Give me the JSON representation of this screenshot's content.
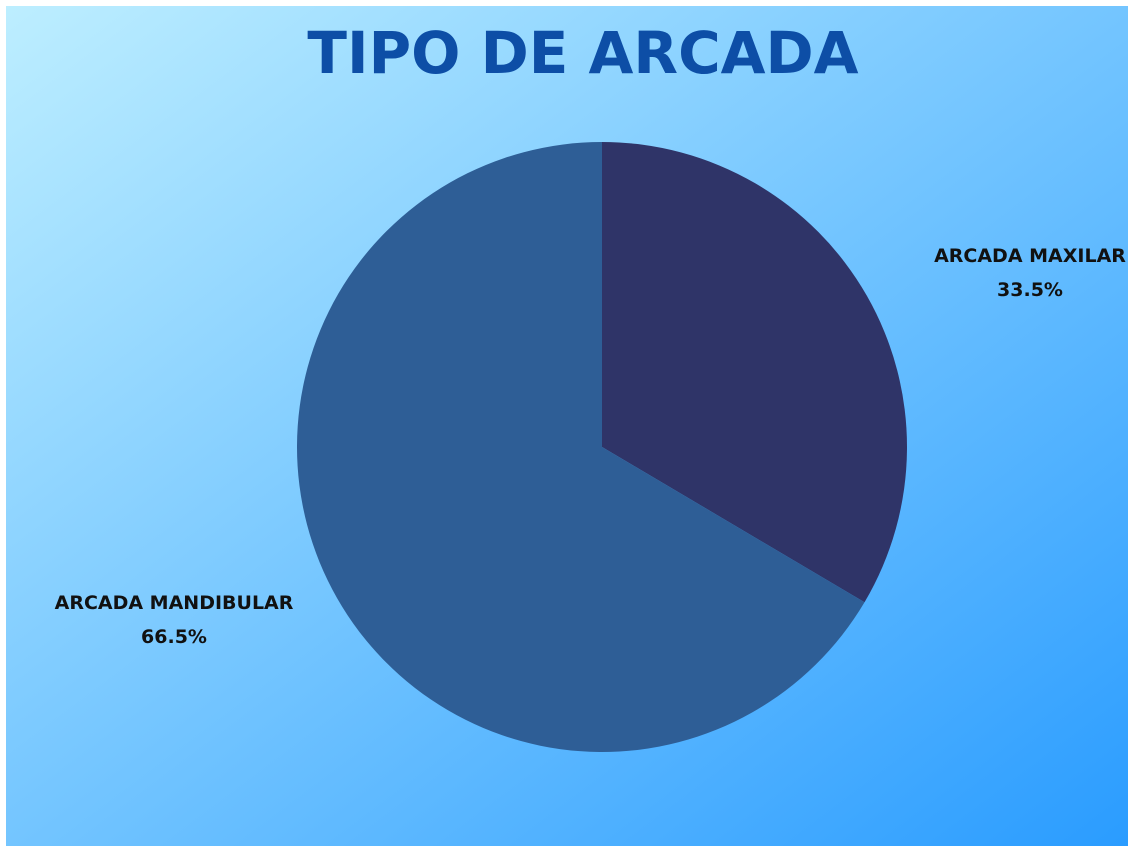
{
  "chart_data": {
    "type": "pie",
    "title": "TIPO DE ARCADA",
    "categories": [
      "ARCADA MAXILAR",
      "ARCADA MANDIBULAR"
    ],
    "values": [
      33.5,
      66.5
    ],
    "value_labels": [
      "33.5%",
      "66.5%"
    ],
    "colors": [
      "#2f3468",
      "#2e5e96"
    ]
  }
}
